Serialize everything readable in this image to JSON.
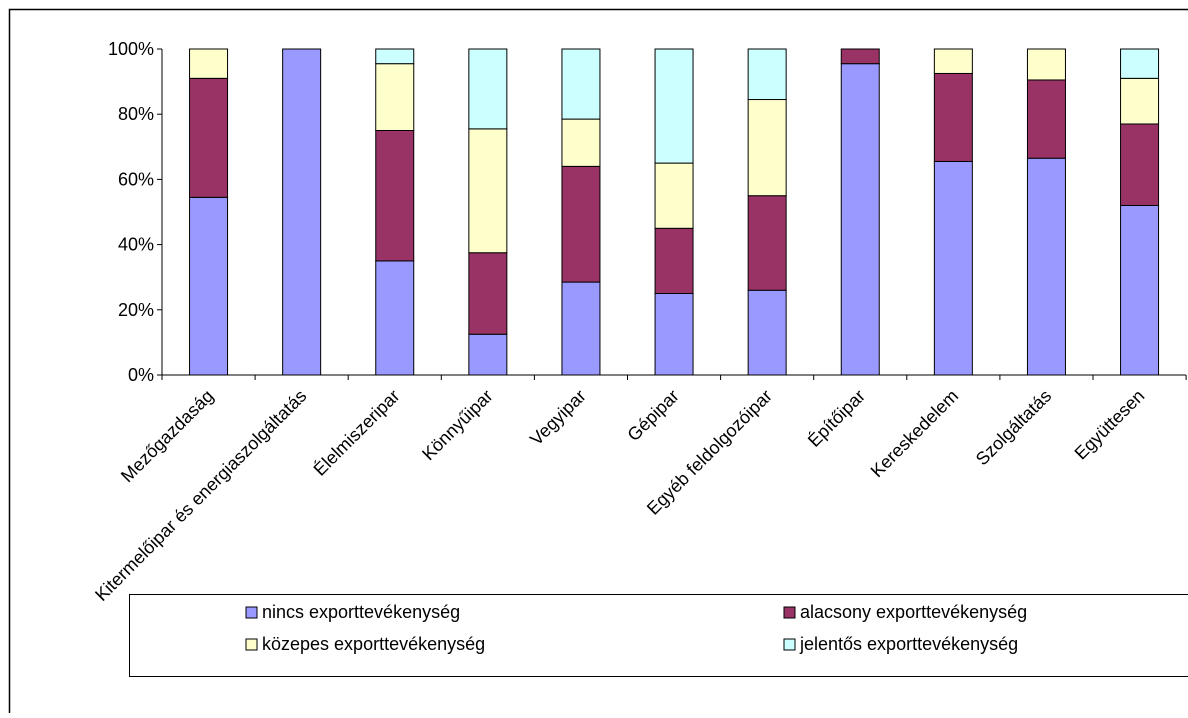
{
  "chart_data": {
    "type": "bar",
    "stacked": true,
    "percent_stacked": true,
    "categories": [
      "Mezőgazdaság",
      "Kitermelőipar és energiaszolgáltatás",
      "Élelmiszeripar",
      "Könnyűipar",
      "Vegyipar",
      "Gépipar",
      "Egyéb feldolgozóipar",
      "Építőipar",
      "Kereskedelem",
      "Szolgáltatás",
      "Együttesen"
    ],
    "series": [
      {
        "name": "nincs exporttevékenység",
        "color": "#9999FF",
        "values": [
          54.5,
          100,
          35,
          12.5,
          28.5,
          25,
          26,
          95.5,
          65.5,
          66.5,
          52
        ]
      },
      {
        "name": "alacsony exporttevékenység",
        "color": "#993366",
        "values": [
          36.5,
          0,
          40,
          25,
          35.5,
          20,
          29,
          4.5,
          27,
          24,
          25
        ]
      },
      {
        "name": "közepes exporttevékenység",
        "color": "#FFFFCC",
        "values": [
          9,
          0,
          20.5,
          38,
          14.5,
          20,
          29.5,
          0,
          7.5,
          9.5,
          14
        ]
      },
      {
        "name": "jelentős exporttevékenység",
        "color": "#CCFFFF",
        "values": [
          0,
          0,
          4.5,
          24.5,
          21.5,
          35,
          15.5,
          0,
          0,
          0,
          9
        ]
      }
    ],
    "ylim": [
      0,
      100
    ],
    "yticks": [
      "0%",
      "20%",
      "40%",
      "60%",
      "80%",
      "100%"
    ],
    "ytick_values": [
      0,
      20,
      40,
      60,
      80,
      100
    ],
    "grid": false,
    "legend_position": "bottom",
    "title": "",
    "xlabel": "",
    "ylabel": ""
  }
}
